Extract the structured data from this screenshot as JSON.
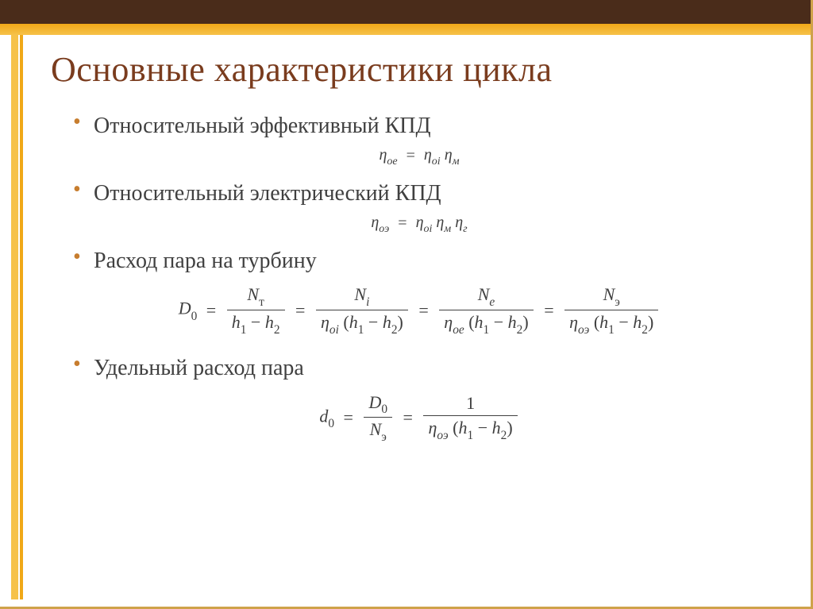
{
  "title": "Основные характеристики цикла",
  "bullets": {
    "b1": "Относительный эффективный КПД",
    "b2": "Относительный электрический КПД",
    "b3": "Расход пара на турбину",
    "b4": "Удельный расход пара"
  },
  "formulas": {
    "f1_left": "η",
    "f1_left_sub": "ое",
    "f1_rhs1": "η",
    "f1_rhs1_sub": "оі",
    "f1_rhs2": "η",
    "f1_rhs2_sub": "м",
    "f2_left": "η",
    "f2_left_sub": "оэ",
    "f2_rhs1": "η",
    "f2_rhs1_sub": "оі",
    "f2_rhs2": "η",
    "f2_rhs2_sub": "м",
    "f2_rhs3": "η",
    "f2_rhs3_sub": "г",
    "d0": "D",
    "d0_sub": "0",
    "n_t": "N",
    "n_t_sub": "т",
    "n_i": "N",
    "n_i_sub": "i",
    "n_e": "N",
    "n_e_sub": "е",
    "n_el": "N",
    "n_el_sub": "э",
    "h1": "h",
    "h1_sub": "1",
    "h2": "h",
    "h2_sub": "2",
    "eta_oi": "η",
    "eta_oi_sub": "оі",
    "eta_oe": "η",
    "eta_oe_sub": "ое",
    "eta_oel": "η",
    "eta_oel_sub": "оэ",
    "d_small": "d",
    "d_small_sub": "0",
    "one": "1"
  },
  "style": {
    "title_color": "#7a3c1e",
    "bullet_color": "#c77d2e",
    "text_color": "#404040",
    "top_band_color": "#4a2c1a",
    "yellow_from": "#f0a818",
    "yellow_to": "#f6c24a",
    "title_fontsize": 44,
    "bullet_fontsize": 28,
    "formula_fontsize": 20
  }
}
